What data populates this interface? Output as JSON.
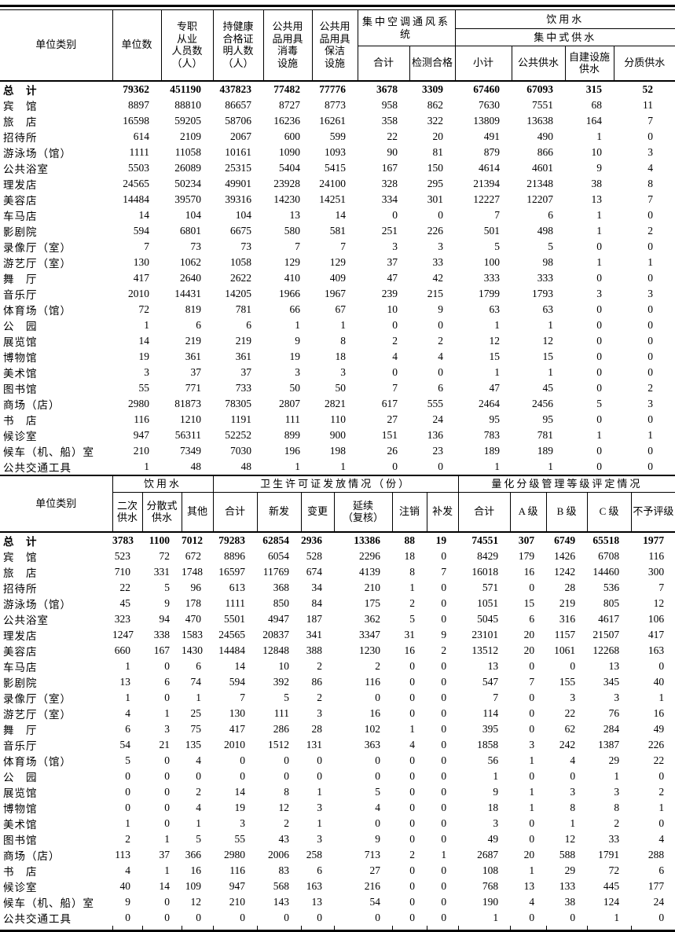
{
  "table1": {
    "header": {
      "unit_category": "单位类别",
      "unit_count": "单位数",
      "full_time_staff": "专职\n从业\n人员数\n（人）",
      "health_certificate": "持健康\n合格证\n明人数\n（人）",
      "disinfection": "公共用\n品用具\n消毒\n设施",
      "cleaning": "公共用\n品用具\n保洁\n设施",
      "central_ac_group": "集中空调通风系统",
      "ac_total": "合计",
      "ac_qualified": "检测合格",
      "drinking_water_group": "饮用水",
      "centralized_supply_group": "集中式供水",
      "subtotal": "小计",
      "public_supply": "公共供水",
      "self_built_supply": "自建设施\n供水",
      "quality_supply": "分质供水"
    },
    "rows": [
      {
        "label": "总　计",
        "bold": true,
        "values": [
          79362,
          451190,
          437823,
          77482,
          77776,
          3678,
          3309,
          67460,
          67093,
          315,
          52
        ]
      },
      {
        "label": "宾　馆",
        "values": [
          8897,
          88810,
          86657,
          8727,
          8773,
          958,
          862,
          7630,
          7551,
          68,
          11
        ]
      },
      {
        "label": "旅　店",
        "values": [
          16598,
          59205,
          58706,
          16236,
          16261,
          358,
          322,
          13809,
          13638,
          164,
          7
        ]
      },
      {
        "label": "招待所",
        "values": [
          614,
          2109,
          2067,
          600,
          599,
          22,
          20,
          491,
          490,
          1,
          0
        ]
      },
      {
        "label": "游泳场（馆）",
        "values": [
          1111,
          11058,
          10161,
          1090,
          1093,
          90,
          81,
          879,
          866,
          10,
          3
        ]
      },
      {
        "label": "公共浴室",
        "values": [
          5503,
          26089,
          25315,
          5404,
          5415,
          167,
          150,
          4614,
          4601,
          9,
          4
        ]
      },
      {
        "label": "理发店",
        "values": [
          24565,
          50234,
          49901,
          23928,
          24100,
          328,
          295,
          21394,
          21348,
          38,
          8
        ]
      },
      {
        "label": "美容店",
        "values": [
          14484,
          39570,
          39316,
          14230,
          14251,
          334,
          301,
          12227,
          12207,
          13,
          7
        ]
      },
      {
        "label": "车马店",
        "values": [
          14,
          104,
          104,
          13,
          14,
          0,
          0,
          7,
          6,
          1,
          0
        ]
      },
      {
        "label": "影剧院",
        "values": [
          594,
          6801,
          6675,
          580,
          581,
          251,
          226,
          501,
          498,
          1,
          2
        ]
      },
      {
        "label": "录像厅（室）",
        "values": [
          7,
          73,
          73,
          7,
          7,
          3,
          3,
          5,
          5,
          0,
          0
        ]
      },
      {
        "label": "游艺厅（室）",
        "values": [
          130,
          1062,
          1058,
          129,
          129,
          37,
          33,
          100,
          98,
          1,
          1
        ]
      },
      {
        "label": "舞　厅",
        "values": [
          417,
          2640,
          2622,
          410,
          409,
          47,
          42,
          333,
          333,
          0,
          0
        ]
      },
      {
        "label": "音乐厅",
        "values": [
          2010,
          14431,
          14205,
          1966,
          1967,
          239,
          215,
          1799,
          1793,
          3,
          3
        ]
      },
      {
        "label": "体育场（馆）",
        "values": [
          72,
          819,
          781,
          66,
          67,
          10,
          9,
          63,
          63,
          0,
          0
        ]
      },
      {
        "label": "公　园",
        "values": [
          1,
          6,
          6,
          1,
          1,
          0,
          0,
          1,
          1,
          0,
          0
        ]
      },
      {
        "label": "展览馆",
        "values": [
          14,
          219,
          219,
          9,
          8,
          2,
          2,
          12,
          12,
          0,
          0
        ]
      },
      {
        "label": "博物馆",
        "values": [
          19,
          361,
          361,
          19,
          18,
          4,
          4,
          15,
          15,
          0,
          0
        ]
      },
      {
        "label": "美术馆",
        "values": [
          3,
          37,
          37,
          3,
          3,
          0,
          0,
          1,
          1,
          0,
          0
        ]
      },
      {
        "label": "图书馆",
        "values": [
          55,
          771,
          733,
          50,
          50,
          7,
          6,
          47,
          45,
          0,
          2
        ]
      },
      {
        "label": "商场（店）",
        "values": [
          2980,
          81873,
          78305,
          2807,
          2821,
          617,
          555,
          2464,
          2456,
          5,
          3
        ]
      },
      {
        "label": "书　店",
        "values": [
          116,
          1210,
          1191,
          111,
          110,
          27,
          24,
          95,
          95,
          0,
          0
        ]
      },
      {
        "label": "候诊室",
        "values": [
          947,
          56311,
          52252,
          899,
          900,
          151,
          136,
          783,
          781,
          1,
          1
        ]
      },
      {
        "label": "候车（机、船）室",
        "values": [
          210,
          7349,
          7030,
          196,
          198,
          26,
          23,
          189,
          189,
          0,
          0
        ]
      },
      {
        "label": "公共交通工具",
        "values": [
          1,
          48,
          48,
          1,
          1,
          0,
          0,
          1,
          1,
          0,
          0
        ]
      }
    ]
  },
  "table2": {
    "header": {
      "unit_category": "单位类别",
      "drinking_water_group": "饮用水",
      "secondary_supply": "二次\n供水",
      "decentralized_supply": "分散式\n供水",
      "other": "其他",
      "license_group": "卫生许可证发放情况（份）",
      "license_total": "合计",
      "new_issue": "新发",
      "change": "变更",
      "renewal": "延续\n（复核）",
      "cancel": "注销",
      "reissue": "补发",
      "grading_group": "量化分级管理等级评定情况",
      "grading_total": "合计",
      "grade_a": "A 级",
      "grade_b": "B 级",
      "grade_c": "C 级",
      "no_grade": "不予评级"
    },
    "rows": [
      {
        "label": "总　计",
        "bold": true,
        "values": [
          3783,
          1100,
          7012,
          79283,
          62854,
          2936,
          13386,
          88,
          19,
          74551,
          307,
          6749,
          65518,
          1977
        ]
      },
      {
        "label": "宾　馆",
        "values": [
          523,
          72,
          672,
          8896,
          6054,
          528,
          2296,
          18,
          0,
          8429,
          179,
          1426,
          6708,
          116
        ]
      },
      {
        "label": "旅　店",
        "values": [
          710,
          331,
          1748,
          16597,
          11769,
          674,
          4139,
          8,
          7,
          16018,
          16,
          1242,
          14460,
          300
        ]
      },
      {
        "label": "招待所",
        "values": [
          22,
          5,
          96,
          613,
          368,
          34,
          210,
          1,
          0,
          571,
          0,
          28,
          536,
          7
        ]
      },
      {
        "label": "游泳场（馆）",
        "values": [
          45,
          9,
          178,
          1111,
          850,
          84,
          175,
          2,
          0,
          1051,
          15,
          219,
          805,
          12
        ]
      },
      {
        "label": "公共浴室",
        "values": [
          323,
          94,
          470,
          5501,
          4947,
          187,
          362,
          5,
          0,
          5045,
          6,
          316,
          4617,
          106
        ]
      },
      {
        "label": "理发店",
        "values": [
          1247,
          338,
          1583,
          24565,
          20837,
          341,
          3347,
          31,
          9,
          23101,
          20,
          1157,
          21507,
          417
        ]
      },
      {
        "label": "美容店",
        "values": [
          660,
          167,
          1430,
          14484,
          12848,
          388,
          1230,
          16,
          2,
          13512,
          20,
          1061,
          12268,
          163
        ]
      },
      {
        "label": "车马店",
        "values": [
          1,
          0,
          6,
          14,
          10,
          2,
          2,
          0,
          0,
          13,
          0,
          0,
          13,
          0
        ]
      },
      {
        "label": "影剧院",
        "values": [
          13,
          6,
          74,
          594,
          392,
          86,
          116,
          0,
          0,
          547,
          7,
          155,
          345,
          40
        ]
      },
      {
        "label": "录像厅（室）",
        "values": [
          1,
          0,
          1,
          7,
          5,
          2,
          0,
          0,
          0,
          7,
          0,
          3,
          3,
          1
        ]
      },
      {
        "label": "游艺厅（室）",
        "values": [
          4,
          1,
          25,
          130,
          111,
          3,
          16,
          0,
          0,
          114,
          0,
          22,
          76,
          16
        ]
      },
      {
        "label": "舞　厅",
        "values": [
          6,
          3,
          75,
          417,
          286,
          28,
          102,
          1,
          0,
          395,
          0,
          62,
          284,
          49
        ]
      },
      {
        "label": "音乐厅",
        "values": [
          54,
          21,
          135,
          2010,
          1512,
          131,
          363,
          4,
          0,
          1858,
          3,
          242,
          1387,
          226
        ]
      },
      {
        "label": "体育场（馆）",
        "values": [
          5,
          0,
          4,
          0,
          0,
          0,
          0,
          0,
          0,
          56,
          1,
          4,
          29,
          22
        ]
      },
      {
        "label": "公　园",
        "values": [
          0,
          0,
          0,
          0,
          0,
          0,
          0,
          0,
          0,
          1,
          0,
          0,
          1,
          0
        ]
      },
      {
        "label": "展览馆",
        "values": [
          0,
          0,
          2,
          14,
          8,
          1,
          5,
          0,
          0,
          9,
          1,
          3,
          3,
          2
        ]
      },
      {
        "label": "博物馆",
        "values": [
          0,
          0,
          4,
          19,
          12,
          3,
          4,
          0,
          0,
          18,
          1,
          8,
          8,
          1
        ]
      },
      {
        "label": "美术馆",
        "values": [
          1,
          0,
          1,
          3,
          2,
          1,
          0,
          0,
          0,
          3,
          0,
          1,
          2,
          0
        ]
      },
      {
        "label": "图书馆",
        "values": [
          2,
          1,
          5,
          55,
          43,
          3,
          9,
          0,
          0,
          49,
          0,
          12,
          33,
          4
        ]
      },
      {
        "label": "商场（店）",
        "values": [
          113,
          37,
          366,
          2980,
          2006,
          258,
          713,
          2,
          1,
          2687,
          20,
          588,
          1791,
          288
        ]
      },
      {
        "label": "书　店",
        "values": [
          4,
          1,
          16,
          116,
          83,
          6,
          27,
          0,
          0,
          108,
          1,
          29,
          72,
          6
        ]
      },
      {
        "label": "候诊室",
        "values": [
          40,
          14,
          109,
          947,
          568,
          163,
          216,
          0,
          0,
          768,
          13,
          133,
          445,
          177
        ]
      },
      {
        "label": "候车（机、船）室",
        "values": [
          9,
          0,
          12,
          210,
          143,
          13,
          54,
          0,
          0,
          190,
          4,
          38,
          124,
          24
        ]
      },
      {
        "label": "公共交通工具",
        "values": [
          0,
          0,
          0,
          0,
          0,
          0,
          0,
          0,
          0,
          1,
          0,
          0,
          1,
          0
        ]
      }
    ]
  }
}
